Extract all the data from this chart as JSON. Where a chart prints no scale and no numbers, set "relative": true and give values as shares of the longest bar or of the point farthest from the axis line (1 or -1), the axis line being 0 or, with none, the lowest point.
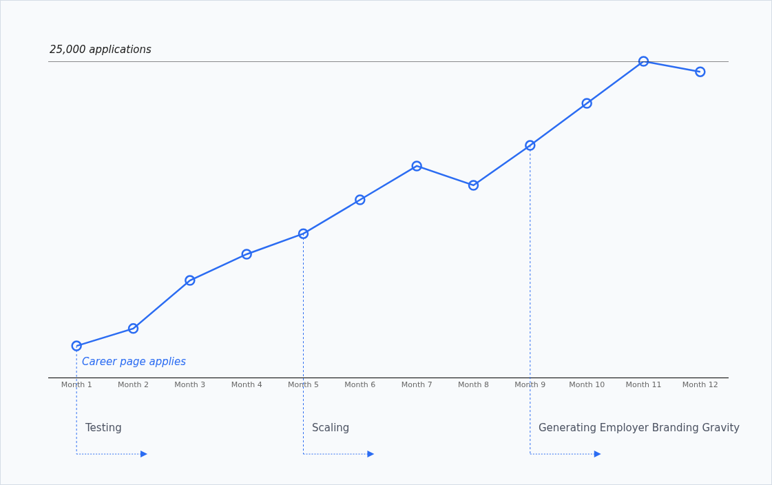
{
  "chart_data": {
    "type": "line",
    "relative": true,
    "categories": [
      "Month 1",
      "Month 2",
      "Month 3",
      "Month 4",
      "Month 5",
      "Month 6",
      "Month 7",
      "Month 8",
      "Month 9",
      "Month 10",
      "Month 11",
      "Month 12"
    ],
    "series": [
      {
        "name": "Career page applies",
        "color": "#2b6cf2",
        "values": [
          0.1,
          0.155,
          0.307,
          0.39,
          0.455,
          0.562,
          0.669,
          0.608,
          0.734,
          0.867,
          1,
          0.967
        ]
      }
    ],
    "marker": "circle",
    "line_style": "solid",
    "grid": false,
    "legend": false,
    "ref_lines": [
      {
        "axis": "y",
        "value": 1,
        "label": "25,000 applications",
        "color": "#1a1a1a"
      },
      {
        "axis": "x",
        "value": "Month 1",
        "label": "Testing",
        "color": "#2b6cf2",
        "line_style": "dotted"
      },
      {
        "axis": "x",
        "value": "Month 5",
        "label": "Scaling",
        "color": "#2b6cf2",
        "line_style": "dotted"
      },
      {
        "axis": "x",
        "value": "Month 9",
        "label": "Generating Employer Branding Gravity",
        "color": "#2b6cf2",
        "line_style": "dotted"
      }
    ]
  }
}
